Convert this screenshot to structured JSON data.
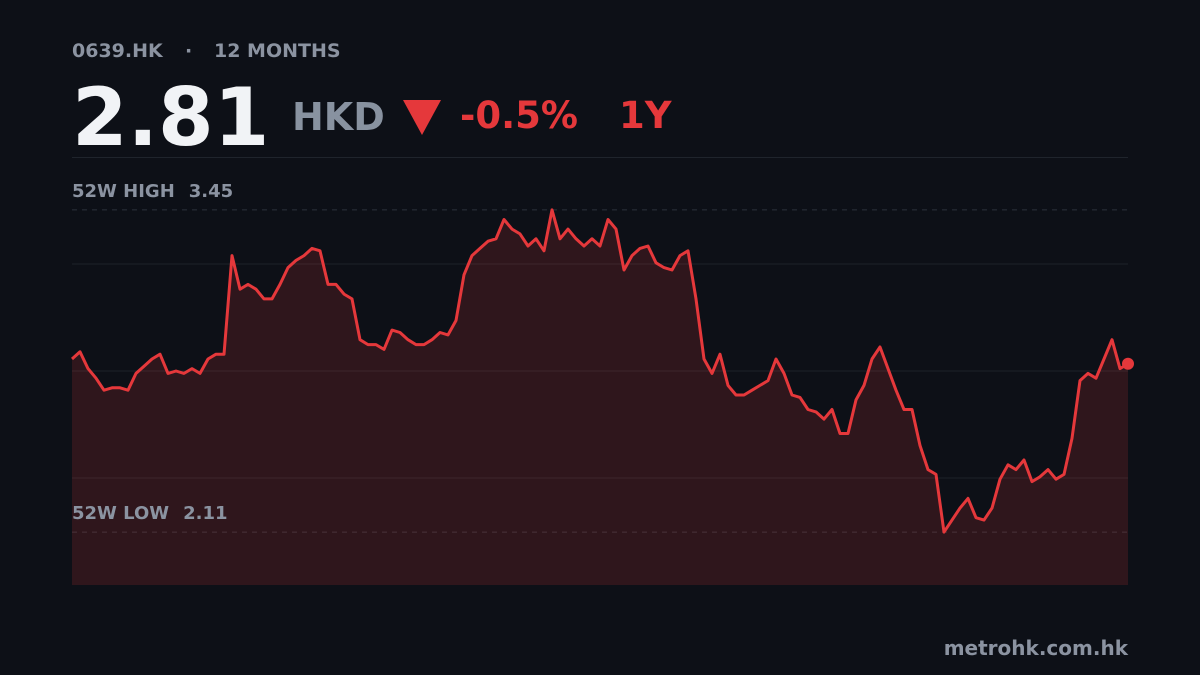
{
  "header": {
    "ticker": "0639.HK",
    "separator": "·",
    "period": "12 MONTHS",
    "price": "2.81",
    "currency": "HKD",
    "change": "-0.5%",
    "range": "1Y"
  },
  "chart_data": {
    "type": "line",
    "color": "#e5383b",
    "values": [
      2.83,
      2.86,
      2.79,
      2.75,
      2.7,
      2.71,
      2.71,
      2.7,
      2.77,
      2.8,
      2.83,
      2.85,
      2.77,
      2.78,
      2.77,
      2.79,
      2.77,
      2.83,
      2.85,
      2.85,
      3.26,
      3.12,
      3.14,
      3.12,
      3.08,
      3.08,
      3.14,
      3.21,
      3.24,
      3.26,
      3.29,
      3.28,
      3.14,
      3.14,
      3.1,
      3.08,
      2.91,
      2.89,
      2.89,
      2.87,
      2.95,
      2.94,
      2.91,
      2.89,
      2.89,
      2.91,
      2.94,
      2.93,
      2.99,
      3.18,
      3.26,
      3.29,
      3.32,
      3.33,
      3.41,
      3.37,
      3.35,
      3.3,
      3.33,
      3.28,
      3.45,
      3.33,
      3.37,
      3.33,
      3.3,
      3.33,
      3.3,
      3.41,
      3.37,
      3.2,
      3.26,
      3.29,
      3.3,
      3.23,
      3.21,
      3.2,
      3.26,
      3.28,
      3.08,
      2.83,
      2.77,
      2.85,
      2.72,
      2.68,
      2.68,
      2.7,
      2.72,
      2.74,
      2.83,
      2.77,
      2.68,
      2.67,
      2.62,
      2.61,
      2.58,
      2.62,
      2.52,
      2.52,
      2.66,
      2.72,
      2.83,
      2.88,
      2.79,
      2.7,
      2.62,
      2.62,
      2.47,
      2.37,
      2.35,
      2.11,
      2.16,
      2.21,
      2.25,
      2.17,
      2.16,
      2.21,
      2.33,
      2.39,
      2.37,
      2.41,
      2.32,
      2.34,
      2.37,
      2.33,
      2.35,
      2.5,
      2.74,
      2.77,
      2.75,
      2.83,
      2.91,
      2.79,
      2.81
    ],
    "ylim": [
      1.89,
      3.67
    ],
    "high": {
      "label": "52W HIGH",
      "value": 3.45
    },
    "low": {
      "label": "52W LOW",
      "value": 2.11
    }
  },
  "footer": "metrohk.com.hk"
}
